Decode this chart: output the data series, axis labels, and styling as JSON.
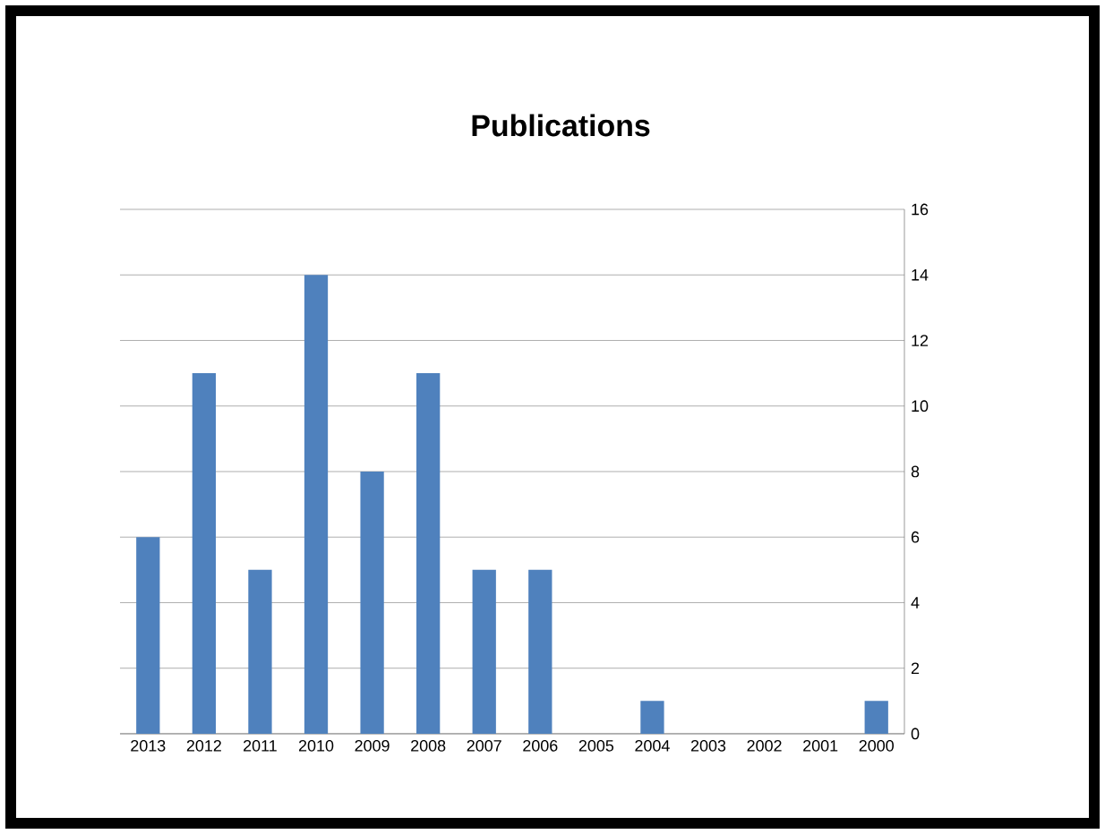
{
  "chart_data": {
    "type": "bar",
    "title": "Publications",
    "categories": [
      "2013",
      "2012",
      "2011",
      "2010",
      "2009",
      "2008",
      "2007",
      "2006",
      "2005",
      "2004",
      "2003",
      "2002",
      "2001",
      "2000"
    ],
    "values": [
      6,
      11,
      5,
      14,
      8,
      11,
      5,
      5,
      0,
      1,
      0,
      0,
      0,
      1
    ],
    "color": "#4f81bd",
    "ylim": [
      0,
      16
    ],
    "yticks": [
      0,
      2,
      4,
      6,
      8,
      10,
      12,
      14,
      16
    ],
    "grid": "y"
  }
}
